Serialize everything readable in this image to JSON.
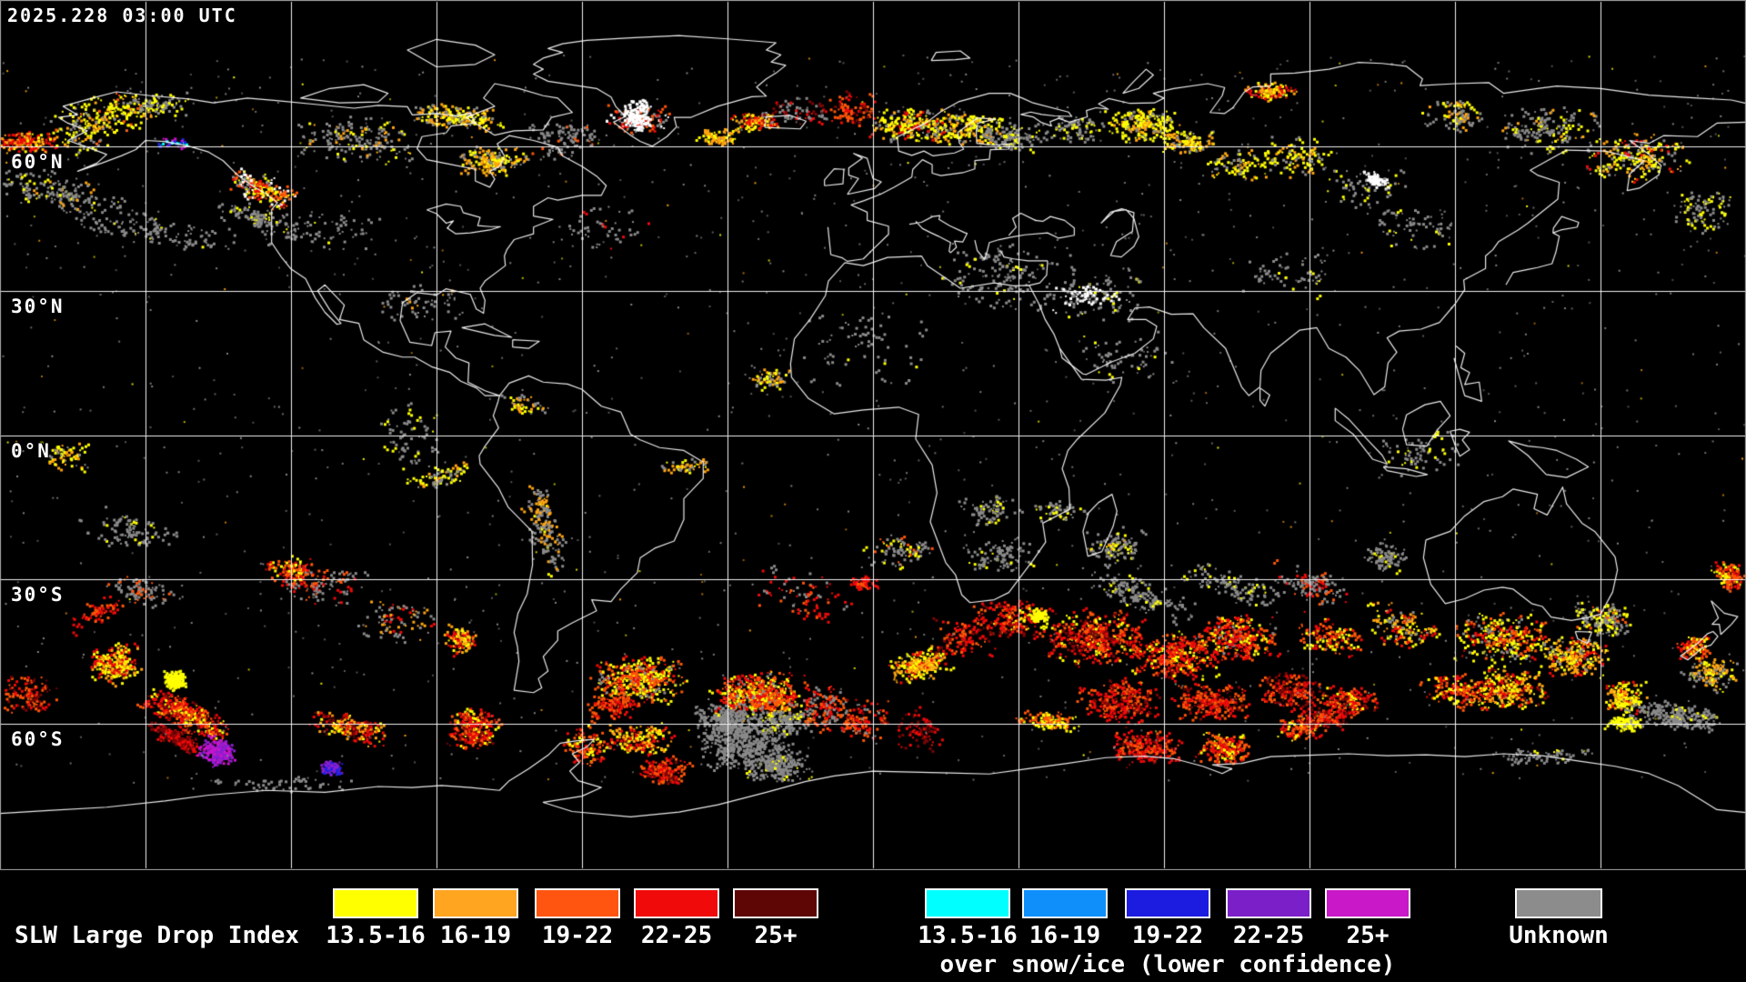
{
  "header": {
    "timestamp": "2025.228 03:00 UTC"
  },
  "map": {
    "lat_labels": [
      {
        "text": "60°N",
        "lat": 60
      },
      {
        "text": "30°N",
        "lat": 30
      },
      {
        "text": "0°N",
        "lat": 0
      },
      {
        "text": "30°S",
        "lat": -30
      },
      {
        "text": "60°S",
        "lat": -60
      }
    ],
    "graticule": {
      "lat_lines_deg": [
        60,
        30,
        0,
        -30,
        -60
      ],
      "lon_step_deg": 30
    },
    "palette": {
      "background": "#000000",
      "coastline": "#FFFFFF",
      "graticule": "#FFFFFF",
      "border": "#A8A8A8",
      "yellow": "#FFFF00",
      "orange": "#FFA510",
      "deep_orange": "#FF5508",
      "red": "#EE0A0A",
      "dark_red": "#7A0606",
      "gray": "#8A8A8A",
      "white": "#FFFFFF",
      "cyan": "#00FFFF",
      "blue": "#1E90FF",
      "royal_blue": "#2222E0",
      "purple": "#8A1FD0",
      "magenta": "#CC14CC"
    }
  },
  "legend": {
    "slw": {
      "title": "SLW Large Drop Index",
      "items": [
        {
          "label": "13.5-16",
          "color": "#FFFF00"
        },
        {
          "label": "16-19",
          "color": "#FFA520"
        },
        {
          "label": "19-22",
          "color": "#FF5510"
        },
        {
          "label": "22-25",
          "color": "#F00A0A"
        },
        {
          "label": "25+",
          "color": "#5E0505"
        }
      ]
    },
    "snow_ice": {
      "caption": "over snow/ice (lower confidence)",
      "items": [
        {
          "label": "13.5-16",
          "color": "#00FFFF"
        },
        {
          "label": "16-19",
          "color": "#0E8FFA"
        },
        {
          "label": "19-22",
          "color": "#1C1CE0"
        },
        {
          "label": "22-25",
          "color": "#7B1FC8"
        },
        {
          "label": "25+",
          "color": "#C818C8"
        }
      ]
    },
    "unknown": {
      "label": "Unknown",
      "color": "#8C8C8C"
    }
  }
}
